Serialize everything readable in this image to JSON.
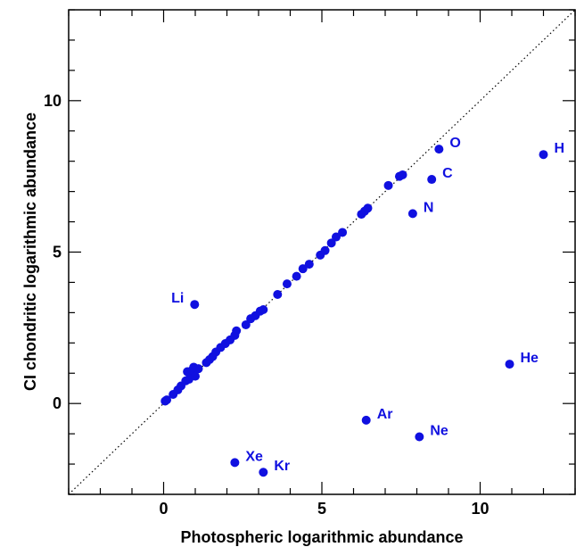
{
  "chart_data": {
    "type": "scatter",
    "xlabel": "Photospheric logarithmic abundance",
    "ylabel": "CI chondritic logarithmic abundance",
    "xlim": [
      -3,
      13
    ],
    "ylim": [
      -3,
      13
    ],
    "xticks": [
      0,
      5,
      10
    ],
    "yticks": [
      0,
      5,
      10
    ],
    "point_color": "#1010e0",
    "reference_line": "y = x (dotted)",
    "points": [
      {
        "x": 0.05,
        "y": 0.08
      },
      {
        "x": 0.1,
        "y": 0.12
      },
      {
        "x": 0.3,
        "y": 0.3
      },
      {
        "x": 0.45,
        "y": 0.45
      },
      {
        "x": 0.55,
        "y": 0.58
      },
      {
        "x": 0.7,
        "y": 0.75
      },
      {
        "x": 0.75,
        "y": 1.05
      },
      {
        "x": 0.8,
        "y": 0.8
      },
      {
        "x": 0.85,
        "y": 0.95
      },
      {
        "x": 0.9,
        "y": 1.1
      },
      {
        "x": 0.95,
        "y": 1.2
      },
      {
        "x": 1.0,
        "y": 0.9
      },
      {
        "x": 1.1,
        "y": 1.15
      },
      {
        "x": 1.35,
        "y": 1.35
      },
      {
        "x": 1.45,
        "y": 1.45
      },
      {
        "x": 1.55,
        "y": 1.55
      },
      {
        "x": 1.65,
        "y": 1.7
      },
      {
        "x": 1.8,
        "y": 1.85
      },
      {
        "x": 1.95,
        "y": 1.98
      },
      {
        "x": 2.1,
        "y": 2.1
      },
      {
        "x": 2.25,
        "y": 2.25
      },
      {
        "x": 2.3,
        "y": 2.4
      },
      {
        "x": 2.6,
        "y": 2.6
      },
      {
        "x": 2.75,
        "y": 2.8
      },
      {
        "x": 2.9,
        "y": 2.9
      },
      {
        "x": 3.05,
        "y": 3.05
      },
      {
        "x": 3.15,
        "y": 3.1
      },
      {
        "x": 3.6,
        "y": 3.6
      },
      {
        "x": 3.9,
        "y": 3.95
      },
      {
        "x": 4.2,
        "y": 4.2
      },
      {
        "x": 4.4,
        "y": 4.45
      },
      {
        "x": 4.6,
        "y": 4.6
      },
      {
        "x": 4.95,
        "y": 4.9
      },
      {
        "x": 5.1,
        "y": 5.05
      },
      {
        "x": 5.3,
        "y": 5.3
      },
      {
        "x": 5.45,
        "y": 5.5
      },
      {
        "x": 5.65,
        "y": 5.65
      },
      {
        "x": 6.25,
        "y": 6.25
      },
      {
        "x": 6.35,
        "y": 6.35
      },
      {
        "x": 6.45,
        "y": 6.45
      },
      {
        "x": 7.1,
        "y": 7.2
      },
      {
        "x": 7.45,
        "y": 7.5
      },
      {
        "x": 7.55,
        "y": 7.55
      },
      {
        "x": 0.98,
        "y": 3.27,
        "label": "Li"
      },
      {
        "x": 8.7,
        "y": 8.4,
        "label": "O"
      },
      {
        "x": 12.0,
        "y": 8.22,
        "label": "H"
      },
      {
        "x": 8.47,
        "y": 7.4,
        "label": "C"
      },
      {
        "x": 7.87,
        "y": 6.27,
        "label": "N"
      },
      {
        "x": 10.93,
        "y": 1.3,
        "label": "He"
      },
      {
        "x": 6.4,
        "y": -0.55,
        "label": "Ar"
      },
      {
        "x": 8.08,
        "y": -1.1,
        "label": "Ne"
      },
      {
        "x": 2.25,
        "y": -1.95,
        "label": "Xe"
      },
      {
        "x": 3.15,
        "y": -2.27,
        "label": "Kr"
      }
    ]
  }
}
